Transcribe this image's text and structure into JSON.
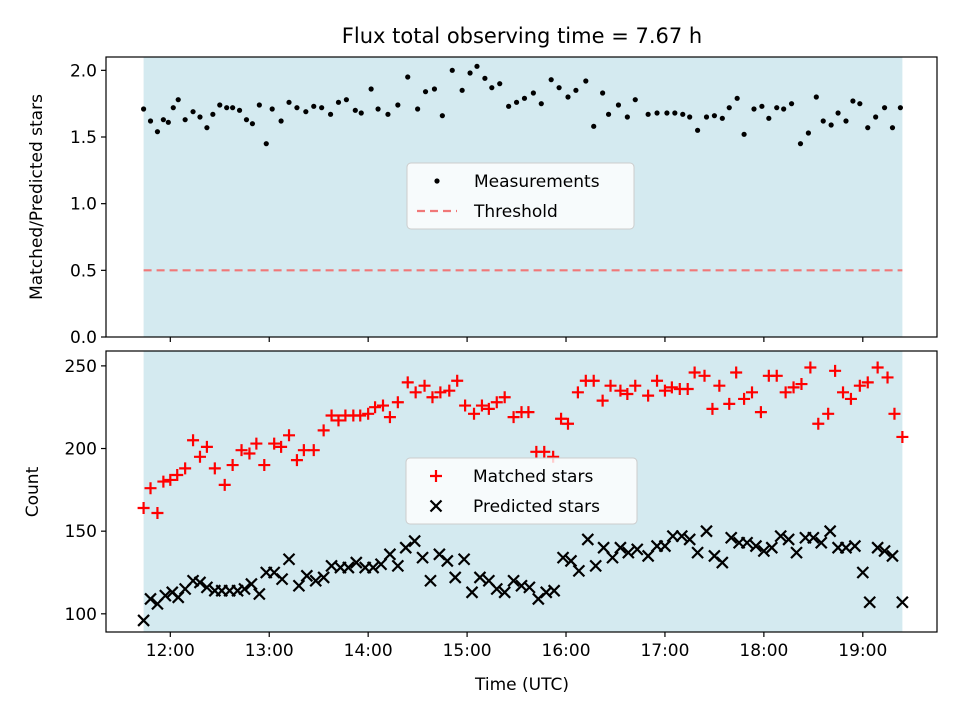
{
  "chart_data": [
    {
      "type": "scatter",
      "title": "Flux total observing time = 7.67 h",
      "xlabel": "",
      "ylabel": "Matched/Predicted stars",
      "ylim": [
        0,
        2.1
      ],
      "yticks": [
        0.0,
        0.5,
        1.0,
        1.5,
        2.0
      ],
      "ytick_labels": [
        "0.0",
        "0.5",
        "1.0",
        "1.5",
        "2.0"
      ],
      "xlim": [
        11.35,
        19.75
      ],
      "shaded_span": [
        11.73,
        19.4
      ],
      "shade_color": "#d4eaf0",
      "threshold": 0.5,
      "legend_position": "center",
      "legend": [
        {
          "name": "Measurements",
          "marker": "dot",
          "color": "#000000"
        },
        {
          "name": "Threshold",
          "marker": "dashed-line",
          "color": "#f07878"
        }
      ],
      "series": [
        {
          "name": "Measurements",
          "color": "#000000",
          "x": [
            11.73,
            11.8,
            11.87,
            11.93,
            11.98,
            12.03,
            12.08,
            12.15,
            12.23,
            12.3,
            12.37,
            12.43,
            12.5,
            12.57,
            12.63,
            12.7,
            12.77,
            12.83,
            12.9,
            12.97,
            13.03,
            13.12,
            13.2,
            13.28,
            13.37,
            13.45,
            13.53,
            13.62,
            13.7,
            13.78,
            13.87,
            13.93,
            14.03,
            14.1,
            14.2,
            14.3,
            14.4,
            14.5,
            14.58,
            14.67,
            14.75,
            14.85,
            14.95,
            15.03,
            15.1,
            15.18,
            15.25,
            15.33,
            15.42,
            15.5,
            15.58,
            15.67,
            15.75,
            15.85,
            15.93,
            16.02,
            16.1,
            16.2,
            16.28,
            16.37,
            16.43,
            16.53,
            16.62,
            16.7,
            16.83,
            16.92,
            17.02,
            17.1,
            17.18,
            17.25,
            17.33,
            17.42,
            17.5,
            17.58,
            17.65,
            17.73,
            17.8,
            17.9,
            17.98,
            18.05,
            18.13,
            18.2,
            18.28,
            18.37,
            18.45,
            18.53,
            18.6,
            18.68,
            18.75,
            18.83,
            18.9,
            18.97,
            19.05,
            19.13,
            19.22,
            19.3,
            19.38
          ],
          "y": [
            1.71,
            1.62,
            1.54,
            1.63,
            1.61,
            1.72,
            1.78,
            1.63,
            1.69,
            1.65,
            1.57,
            1.67,
            1.74,
            1.72,
            1.72,
            1.7,
            1.63,
            1.6,
            1.74,
            1.45,
            1.71,
            1.62,
            1.76,
            1.72,
            1.69,
            1.73,
            1.72,
            1.67,
            1.76,
            1.78,
            1.7,
            1.68,
            1.86,
            1.71,
            1.67,
            1.74,
            1.95,
            1.71,
            1.84,
            1.86,
            1.66,
            2.0,
            1.85,
            1.98,
            2.03,
            1.94,
            1.87,
            1.9,
            1.73,
            1.76,
            1.79,
            1.83,
            1.75,
            1.93,
            1.87,
            1.8,
            1.85,
            1.92,
            1.58,
            1.83,
            1.67,
            1.74,
            1.65,
            1.78,
            1.67,
            1.68,
            1.68,
            1.68,
            1.67,
            1.65,
            1.55,
            1.65,
            1.66,
            1.64,
            1.72,
            1.79,
            1.52,
            1.71,
            1.73,
            1.64,
            1.72,
            1.71,
            1.75,
            1.45,
            1.53,
            1.8,
            1.62,
            1.59,
            1.68,
            1.62,
            1.77,
            1.75,
            1.57,
            1.65,
            1.72,
            1.57,
            1.72
          ]
        },
        {
          "name": "Threshold",
          "color": "#f07878",
          "x": [
            11.73,
            19.4
          ],
          "y": [
            0.5,
            0.5
          ]
        }
      ]
    },
    {
      "type": "scatter",
      "title": "",
      "xlabel": "Time (UTC)",
      "ylabel": "Count",
      "ylim": [
        89,
        259
      ],
      "yticks": [
        100,
        150,
        200,
        250
      ],
      "ytick_labels": [
        "100",
        "150",
        "200",
        "250"
      ],
      "xlim": [
        11.35,
        19.75
      ],
      "xticks": [
        12,
        13,
        14,
        15,
        16,
        17,
        18,
        19
      ],
      "xtick_labels": [
        "12:00",
        "13:00",
        "14:00",
        "15:00",
        "16:00",
        "17:00",
        "18:00",
        "19:00"
      ],
      "shaded_span": [
        11.73,
        19.4
      ],
      "shade_color": "#d4eaf0",
      "legend_position": "center",
      "legend": [
        {
          "name": "Matched stars",
          "marker": "plus",
          "color": "#ff0000"
        },
        {
          "name": "Predicted stars",
          "marker": "x",
          "color": "#000000"
        }
      ],
      "series": [
        {
          "name": "Matched stars",
          "color": "#ff0000",
          "x": [
            11.73,
            11.8,
            11.87,
            11.93,
            12.0,
            12.07,
            12.15,
            12.23,
            12.3,
            12.37,
            12.45,
            12.55,
            12.63,
            12.72,
            12.8,
            12.87,
            12.95,
            13.05,
            13.12,
            13.2,
            13.28,
            13.35,
            13.45,
            13.55,
            13.63,
            13.7,
            13.77,
            13.85,
            13.92,
            14.0,
            14.07,
            14.15,
            14.22,
            14.3,
            14.4,
            14.48,
            14.57,
            14.65,
            14.73,
            14.82,
            14.9,
            14.98,
            15.07,
            15.15,
            15.22,
            15.3,
            15.38,
            15.47,
            15.55,
            15.62,
            15.7,
            15.78,
            15.87,
            15.95,
            16.02,
            16.12,
            16.2,
            16.28,
            16.37,
            16.45,
            16.55,
            16.62,
            16.7,
            16.83,
            16.92,
            17.0,
            17.07,
            17.15,
            17.23,
            17.3,
            17.4,
            17.48,
            17.55,
            17.65,
            17.72,
            17.8,
            17.88,
            17.97,
            18.05,
            18.13,
            18.22,
            18.3,
            18.38,
            18.47,
            18.55,
            18.65,
            18.72,
            18.8,
            18.88,
            18.97,
            19.05,
            19.15,
            19.25,
            19.32,
            19.4
          ],
          "y": [
            164,
            176,
            161,
            180,
            181,
            184,
            188,
            205,
            195,
            201,
            188,
            178,
            190,
            199,
            197,
            203,
            190,
            203,
            201,
            208,
            193,
            199,
            199,
            211,
            220,
            217,
            220,
            220,
            220,
            221,
            225,
            226,
            219,
            228,
            240,
            234,
            238,
            231,
            234,
            235,
            241,
            226,
            221,
            226,
            224,
            228,
            231,
            219,
            222,
            222,
            198,
            198,
            195,
            218,
            215,
            234,
            241,
            241,
            229,
            238,
            235,
            233,
            238,
            232,
            241,
            235,
            237,
            236,
            236,
            246,
            244,
            224,
            238,
            227,
            246,
            230,
            234,
            222,
            244,
            244,
            234,
            237,
            239,
            249,
            215,
            221,
            247,
            234,
            230,
            238,
            240,
            249,
            243,
            221,
            207
          ]
        },
        {
          "name": "Predicted stars",
          "color": "#000000",
          "x": [
            11.73,
            11.8,
            11.87,
            11.95,
            12.02,
            12.08,
            12.15,
            12.23,
            12.3,
            12.37,
            12.45,
            12.52,
            12.6,
            12.68,
            12.75,
            12.82,
            12.9,
            12.97,
            13.05,
            13.13,
            13.2,
            13.3,
            13.38,
            13.47,
            13.55,
            13.63,
            13.72,
            13.8,
            13.88,
            13.97,
            14.05,
            14.13,
            14.22,
            14.3,
            14.38,
            14.47,
            14.55,
            14.63,
            14.72,
            14.8,
            14.88,
            14.97,
            15.05,
            15.13,
            15.22,
            15.3,
            15.38,
            15.47,
            15.55,
            15.63,
            15.72,
            15.8,
            15.88,
            15.97,
            16.05,
            16.13,
            16.22,
            16.3,
            16.38,
            16.47,
            16.55,
            16.63,
            16.72,
            16.83,
            16.92,
            17.0,
            17.08,
            17.17,
            17.25,
            17.33,
            17.42,
            17.5,
            17.58,
            17.67,
            17.75,
            17.83,
            17.92,
            18.0,
            18.08,
            18.17,
            18.25,
            18.33,
            18.42,
            18.5,
            18.58,
            18.67,
            18.75,
            18.83,
            18.92,
            19.0,
            19.07,
            19.15,
            19.22,
            19.3,
            19.4
          ],
          "y": [
            96,
            109,
            106,
            111,
            113,
            110,
            115,
            120,
            119,
            116,
            114,
            114,
            114,
            114,
            115,
            118,
            112,
            125,
            125,
            121,
            133,
            117,
            123,
            120,
            122,
            129,
            128,
            128,
            131,
            128,
            128,
            130,
            136,
            129,
            140,
            144,
            134,
            120,
            136,
            132,
            122,
            133,
            113,
            122,
            120,
            115,
            113,
            120,
            117,
            116,
            109,
            113,
            114,
            134,
            132,
            126,
            145,
            129,
            140,
            134,
            140,
            137,
            139,
            135,
            141,
            141,
            147,
            147,
            145,
            137,
            150,
            135,
            131,
            146,
            143,
            143,
            141,
            138,
            140,
            147,
            145,
            137,
            146,
            146,
            143,
            150,
            140,
            140,
            141,
            125,
            107,
            140,
            138,
            135,
            107
          ]
        }
      ]
    }
  ]
}
